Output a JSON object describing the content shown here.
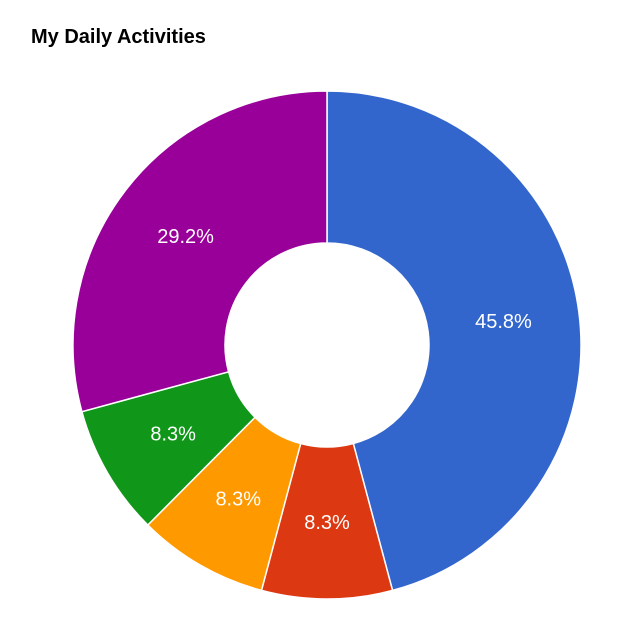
{
  "chart_data": {
    "type": "pie",
    "title": "My Daily Activities",
    "donut": true,
    "slices": [
      {
        "value": 45.8,
        "label": "45.8%",
        "color": "#3366cc"
      },
      {
        "value": 8.3,
        "label": "8.3%",
        "color": "#dc3912"
      },
      {
        "value": 8.3,
        "label": "8.3%",
        "color": "#ff9900"
      },
      {
        "value": 8.3,
        "label": "8.3%",
        "color": "#109618"
      },
      {
        "value": 29.2,
        "label": "29.2%",
        "color": "#990099"
      }
    ]
  }
}
